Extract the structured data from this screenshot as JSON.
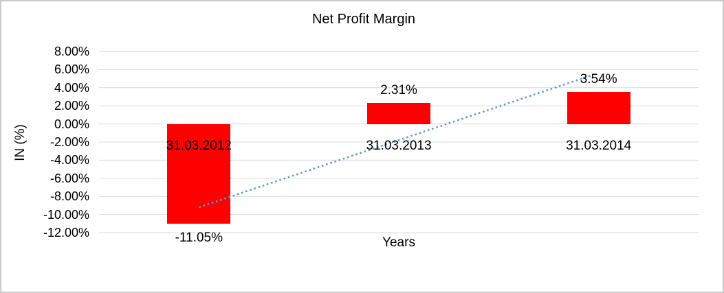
{
  "chart_data": {
    "type": "bar",
    "title": "Net Profit Margin",
    "xlabel": "Years",
    "ylabel": "IN (%)",
    "categories": [
      "31.03.2012",
      "31.03.2013",
      "31.03.2014"
    ],
    "values": [
      -11.05,
      2.31,
      3.54
    ],
    "data_labels": [
      "-11.05%",
      "2.31%",
      "3.54%"
    ],
    "y_ticks": [
      {
        "value": 8,
        "label": "8.00%"
      },
      {
        "value": 6,
        "label": "6.00%"
      },
      {
        "value": 4,
        "label": "4.00%"
      },
      {
        "value": 2,
        "label": "2.00%"
      },
      {
        "value": 0,
        "label": "0.00%"
      },
      {
        "value": -2,
        "label": "-2.00%"
      },
      {
        "value": -4,
        "label": "-4.00%"
      },
      {
        "value": -6,
        "label": "-6.00%"
      },
      {
        "value": -8,
        "label": "-8.00%"
      },
      {
        "value": -10,
        "label": "-10.00%"
      },
      {
        "value": -12,
        "label": "-12.00%"
      }
    ],
    "ylim": [
      -12,
      8
    ],
    "grid": true,
    "legend": "none",
    "colors": {
      "bar": "#FF0000",
      "gridline": "#D9D9D9",
      "trendline": "#5B9BD5",
      "text": "#000000",
      "background": "#FFFFFF"
    },
    "trendline": {
      "style": "dotted",
      "start_value_pct": -9.2,
      "end_value_pct": 5.4
    }
  }
}
